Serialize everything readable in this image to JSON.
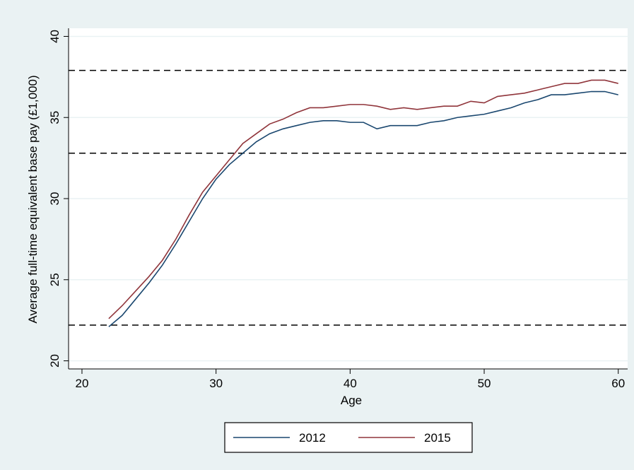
{
  "chart_data": {
    "type": "line",
    "x_label": "Age",
    "y_label": "Average full-time equivalent base pay (£1,000)",
    "x": [
      22,
      23,
      24,
      25,
      26,
      27,
      28,
      29,
      30,
      31,
      32,
      33,
      34,
      35,
      36,
      37,
      38,
      39,
      40,
      41,
      42,
      43,
      44,
      45,
      46,
      47,
      48,
      49,
      50,
      51,
      52,
      53,
      54,
      55,
      56,
      57,
      58,
      59,
      60
    ],
    "series": [
      {
        "name": "2012",
        "color": "#1a476f",
        "values": [
          22.1,
          22.8,
          23.8,
          24.8,
          25.9,
          27.2,
          28.6,
          30.0,
          31.2,
          32.1,
          32.8,
          33.5,
          34.0,
          34.3,
          34.5,
          34.7,
          34.8,
          34.8,
          34.7,
          34.7,
          34.3,
          34.5,
          34.5,
          34.5,
          34.7,
          34.8,
          35.0,
          35.1,
          35.2,
          35.4,
          35.6,
          35.9,
          36.1,
          36.4,
          36.4,
          36.5,
          36.6,
          36.6,
          36.4
        ]
      },
      {
        "name": "2015",
        "color": "#90353b",
        "values": [
          22.6,
          23.4,
          24.3,
          25.2,
          26.2,
          27.5,
          29.0,
          30.4,
          31.4,
          32.4,
          33.4,
          34.0,
          34.6,
          34.9,
          35.3,
          35.6,
          35.6,
          35.7,
          35.8,
          35.8,
          35.7,
          35.5,
          35.6,
          35.5,
          35.6,
          35.7,
          35.7,
          36.0,
          35.9,
          36.3,
          36.4,
          36.5,
          36.7,
          36.9,
          37.1,
          37.1,
          37.3,
          37.3,
          37.1
        ]
      }
    ],
    "reference_lines": [
      37.9,
      32.8,
      22.2
    ],
    "xlim": [
      19,
      60.7
    ],
    "xticks": [
      20,
      30,
      40,
      50,
      60
    ],
    "ylim": [
      19.5,
      40.5
    ],
    "yticks": [
      20,
      25,
      30,
      35,
      40
    ],
    "grid": true,
    "legend": "bottom"
  }
}
